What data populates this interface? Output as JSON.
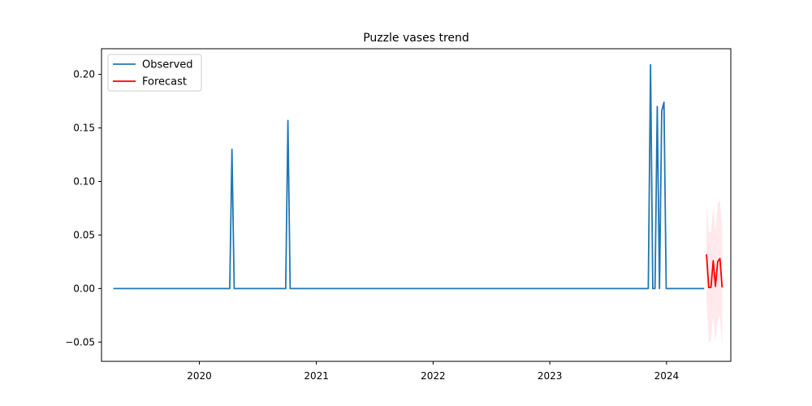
{
  "chart_data": {
    "type": "line",
    "title": "Puzzle vases trend",
    "xlabel": "",
    "ylabel": "",
    "x_range": [
      "2019-03-01",
      "2024-07-20"
    ],
    "ylim": [
      -0.068,
      0.224
    ],
    "x_ticks": [
      {
        "date": "2020-01-01",
        "label": "2020"
      },
      {
        "date": "2021-01-01",
        "label": "2021"
      },
      {
        "date": "2022-01-01",
        "label": "2022"
      },
      {
        "date": "2023-01-01",
        "label": "2023"
      },
      {
        "date": "2024-01-01",
        "label": "2024"
      }
    ],
    "y_ticks": [
      {
        "value": -0.05,
        "label": "−0.05"
      },
      {
        "value": 0.0,
        "label": "0.00"
      },
      {
        "value": 0.05,
        "label": "0.05"
      },
      {
        "value": 0.1,
        "label": "0.10"
      },
      {
        "value": 0.15,
        "label": "0.15"
      },
      {
        "value": 0.2,
        "label": "0.20"
      }
    ],
    "grid": false,
    "legend_position": "top-left",
    "series": [
      {
        "name": "Observed",
        "color": "#1f77b4",
        "points": [
          {
            "x": "2019-04-07",
            "y": 0.0
          },
          {
            "x": "2020-04-05",
            "y": 0.0
          },
          {
            "x": "2020-04-12",
            "y": 0.13
          },
          {
            "x": "2020-04-19",
            "y": 0.0
          },
          {
            "x": "2020-09-27",
            "y": 0.0
          },
          {
            "x": "2020-10-04",
            "y": 0.157
          },
          {
            "x": "2020-10-11",
            "y": 0.0
          },
          {
            "x": "2023-11-05",
            "y": 0.0
          },
          {
            "x": "2023-11-12",
            "y": 0.209
          },
          {
            "x": "2023-11-19",
            "y": 0.0
          },
          {
            "x": "2023-11-26",
            "y": 0.0
          },
          {
            "x": "2023-12-03",
            "y": 0.17
          },
          {
            "x": "2023-12-10",
            "y": 0.0
          },
          {
            "x": "2023-12-17",
            "y": 0.166
          },
          {
            "x": "2023-12-24",
            "y": 0.174
          },
          {
            "x": "2023-12-31",
            "y": 0.0
          },
          {
            "x": "2024-04-28",
            "y": 0.0
          }
        ]
      },
      {
        "name": "Forecast",
        "color": "#ff0000",
        "points": [
          {
            "x": "2024-05-05",
            "y": 0.032
          },
          {
            "x": "2024-05-12",
            "y": 0.001
          },
          {
            "x": "2024-05-19",
            "y": 0.001
          },
          {
            "x": "2024-05-26",
            "y": 0.026
          },
          {
            "x": "2024-06-02",
            "y": 0.002
          },
          {
            "x": "2024-06-09",
            "y": 0.025
          },
          {
            "x": "2024-06-16",
            "y": 0.028
          },
          {
            "x": "2024-06-23",
            "y": 0.001
          }
        ],
        "interval_color": "#ffc0cb",
        "interval_opacity": 0.35,
        "interval": [
          {
            "x": "2024-05-05",
            "lower": -0.012,
            "upper": 0.081
          },
          {
            "x": "2024-05-12",
            "lower": -0.05,
            "upper": 0.052
          },
          {
            "x": "2024-05-19",
            "lower": -0.049,
            "upper": 0.053
          },
          {
            "x": "2024-05-26",
            "lower": -0.026,
            "upper": 0.077
          },
          {
            "x": "2024-06-02",
            "lower": -0.05,
            "upper": 0.054
          },
          {
            "x": "2024-06-09",
            "lower": -0.03,
            "upper": 0.079
          },
          {
            "x": "2024-06-16",
            "lower": -0.025,
            "upper": 0.083
          },
          {
            "x": "2024-06-23",
            "lower": -0.055,
            "upper": 0.057
          }
        ]
      }
    ]
  }
}
